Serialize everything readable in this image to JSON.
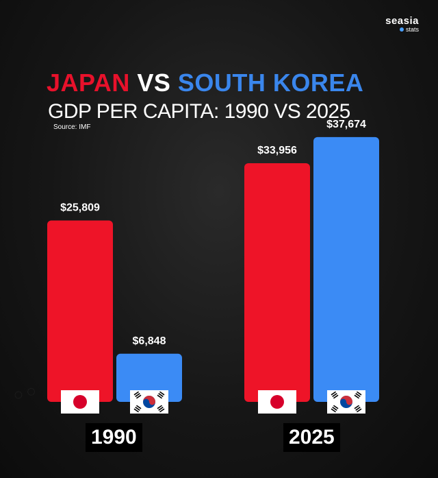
{
  "brand": {
    "name": "seasia",
    "sub": "stats"
  },
  "title": {
    "japan": "JAPAN",
    "vs": "VS",
    "korea": "SOUTH KOREA"
  },
  "subtitle": "GDP PER CAPITA: 1990 VS 2025",
  "source": "Source: IMF",
  "colors": {
    "japan": "#ee1428",
    "korea": "#3b8bf5"
  },
  "chart_data": {
    "type": "bar",
    "title": "GDP PER CAPITA: 1990 VS 2025",
    "categories": [
      "1990",
      "2025"
    ],
    "series": [
      {
        "name": "Japan",
        "values": [
          25809,
          33956
        ],
        "labels": [
          "$25,809",
          "$33,956"
        ]
      },
      {
        "name": "South Korea",
        "values": [
          6848,
          37674
        ],
        "labels": [
          "$6,848",
          "$37,674"
        ]
      }
    ],
    "xlabel": "",
    "ylabel": "",
    "ylim": [
      0,
      40000
    ],
    "grid": false,
    "legend": "flags under bars"
  }
}
